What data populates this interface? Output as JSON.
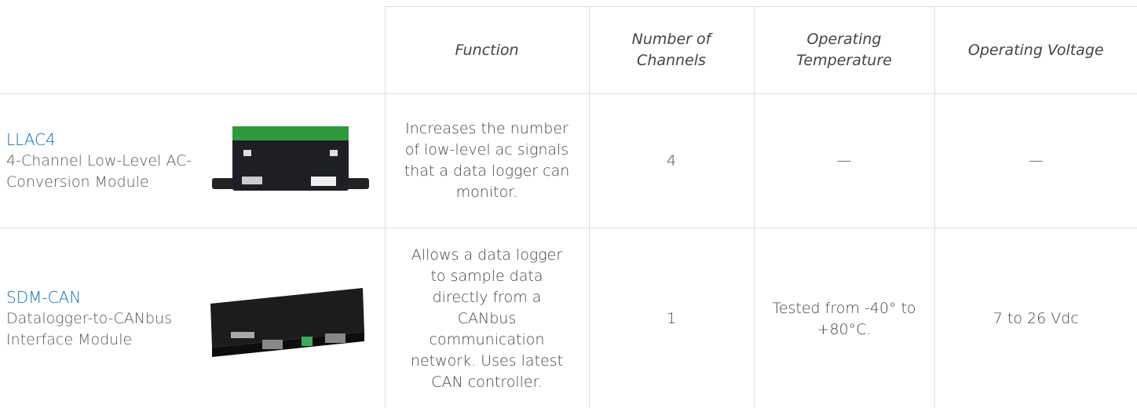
{
  "table": {
    "headers": [
      "Function",
      "Number of Channels",
      "Operating Temperature",
      "Operating Voltage"
    ],
    "rows": [
      {
        "name": "LLAC4",
        "description": "4-Channel Low-Level AC-Conversion Module",
        "cells": [
          "Increases the number of low-level ac signals that a data logger can monitor.",
          "4",
          "—",
          "—"
        ]
      },
      {
        "name": "SDM-CAN",
        "description": "Datalogger-to-CANbus Interface Module",
        "cells": [
          "Allows a data logger to sample data directly from a CANbus communication network. Uses latest CAN controller.",
          "1",
          "Tested from -40° to +80°C.",
          "7 to 26 Vdc"
        ]
      }
    ]
  }
}
